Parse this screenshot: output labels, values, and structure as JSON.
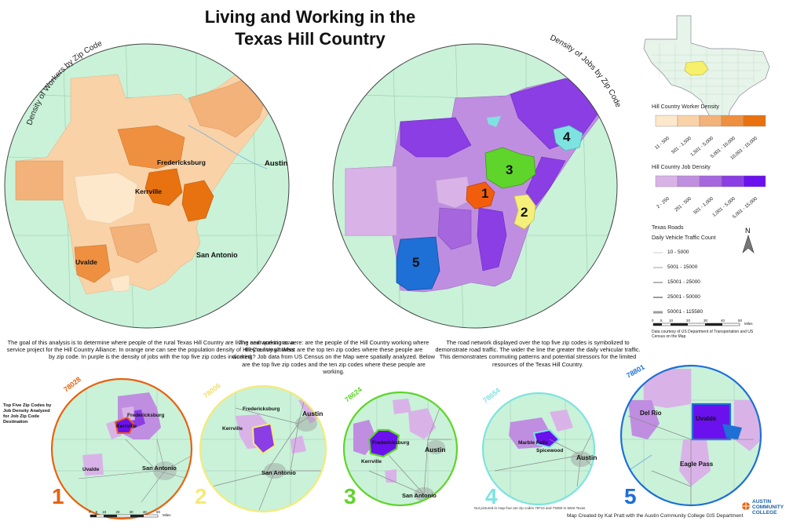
{
  "title": {
    "line1": "Living and Working in the",
    "line2": "Texas Hill Country"
  },
  "left_map": {
    "arc_label": "Density of Workers by Zip Code",
    "cities": [
      "Fredericksburg",
      "Kerrville",
      "Austin",
      "San Antonio",
      "Uvalde"
    ]
  },
  "right_map": {
    "arc_label": "Density of Jobs by Zip Code",
    "numbers": [
      "1",
      "2",
      "3",
      "4",
      "5"
    ]
  },
  "worker_legend": {
    "title": "Hill Country Worker Density",
    "items": [
      {
        "label": "11 - 500",
        "color": "#fde8cc"
      },
      {
        "label": "501 - 1,500",
        "color": "#f9d2a8"
      },
      {
        "label": "1,501 - 5,000",
        "color": "#f3b27a"
      },
      {
        "label": "5,001 - 10,000",
        "color": "#ee9040"
      },
      {
        "label": "10,001 - 15,000",
        "color": "#e8720f"
      }
    ]
  },
  "job_legend": {
    "title": "Hill Country Job Density",
    "items": [
      {
        "label": "2 - 250",
        "color": "#d9b3e8"
      },
      {
        "label": "251 - 500",
        "color": "#c08ee0"
      },
      {
        "label": "501 - 1,000",
        "color": "#a566de"
      },
      {
        "label": "1,001 - 5,000",
        "color": "#8a3ee3"
      },
      {
        "label": "5,001 - 15,000",
        "color": "#6a11ee"
      }
    ]
  },
  "roads_legend": {
    "title": "Texas Roads",
    "subtitle": "Daily Vehicle Traffic Count",
    "items": [
      "10 - 5000",
      "5001 - 15000",
      "15001 - 25000",
      "25001 - 50000",
      "50001 - 115580"
    ]
  },
  "north_label": "N",
  "scalebar": {
    "ticks": [
      "0",
      "5",
      "10",
      "20",
      "30",
      "40",
      "50"
    ],
    "unit": "Miles"
  },
  "data_credit": "Data courtesy of US Department of Transportation and US Census on the Map",
  "paragraphs": {
    "p1": "The goal of this analysis is to determine where people of the rural Texas Hill Country are living and working as a service project for the Hill Country Alliance. In orange one can see the population density of Hill Country workers by zip code. In purple is the density of jobs with the top five zip codes indicated.",
    "p2": "The next questions were: are the people of the Hill Country working where they're living? What are the top ten zip codes where these people are working? Job data from US Census on the Map were spatially analyzed. Below are the top five zip codes and the ten zip codes where these people are working.",
    "p3": "The road network displayed over the top five zip codes is symbolized to demonstrate road traffic. The wider the line the greater the daily vehicular traffic. This demonstrates commuting patterns and potential stressors for the limited resources of the Texas Hill Country."
  },
  "small_maps_caption": "Top Five Zip Codes by Job Density Analyzed for Job Zip Code Destination",
  "small_maps": [
    {
      "rank": "1",
      "zip": "78028",
      "color": "#e8620f",
      "cities": [
        "Fredericksburg",
        "Kerrville",
        "Uvalde",
        "San Antonio"
      ]
    },
    {
      "rank": "2",
      "zip": "78006",
      "color": "#f4ea7a",
      "cities": [
        "Fredericksburg",
        "Austin",
        "Kerrville",
        "San Antonio"
      ]
    },
    {
      "rank": "3",
      "zip": "78624",
      "color": "#5fd42a",
      "cities": [
        "Fredericksburg",
        "Austin",
        "Kerrville",
        "San Antonio"
      ]
    },
    {
      "rank": "4",
      "zip": "78654",
      "color": "#7ee3e0",
      "cities": [
        "Marble Falls",
        "Spicewood",
        "Austin"
      ]
    },
    {
      "rank": "5",
      "zip": "78801",
      "color": "#1e6fd6",
      "cities": [
        "Del Rio",
        "Uvalde",
        "Eagle Pass"
      ]
    }
  ],
  "small_scalebar": {
    "ticks": [
      "0",
      "5",
      "10",
      "20",
      "30",
      "40",
      "50"
    ],
    "unit": "Miles"
  },
  "small_footnote": "Not pictured in map four are zip codes 79714 and 79360 in West Texas",
  "map_credit": "Map Created by Kat Pratt with the Austin Community College GIS Department",
  "logo_text": "AUSTIN COMMUNITY COLLEGE"
}
